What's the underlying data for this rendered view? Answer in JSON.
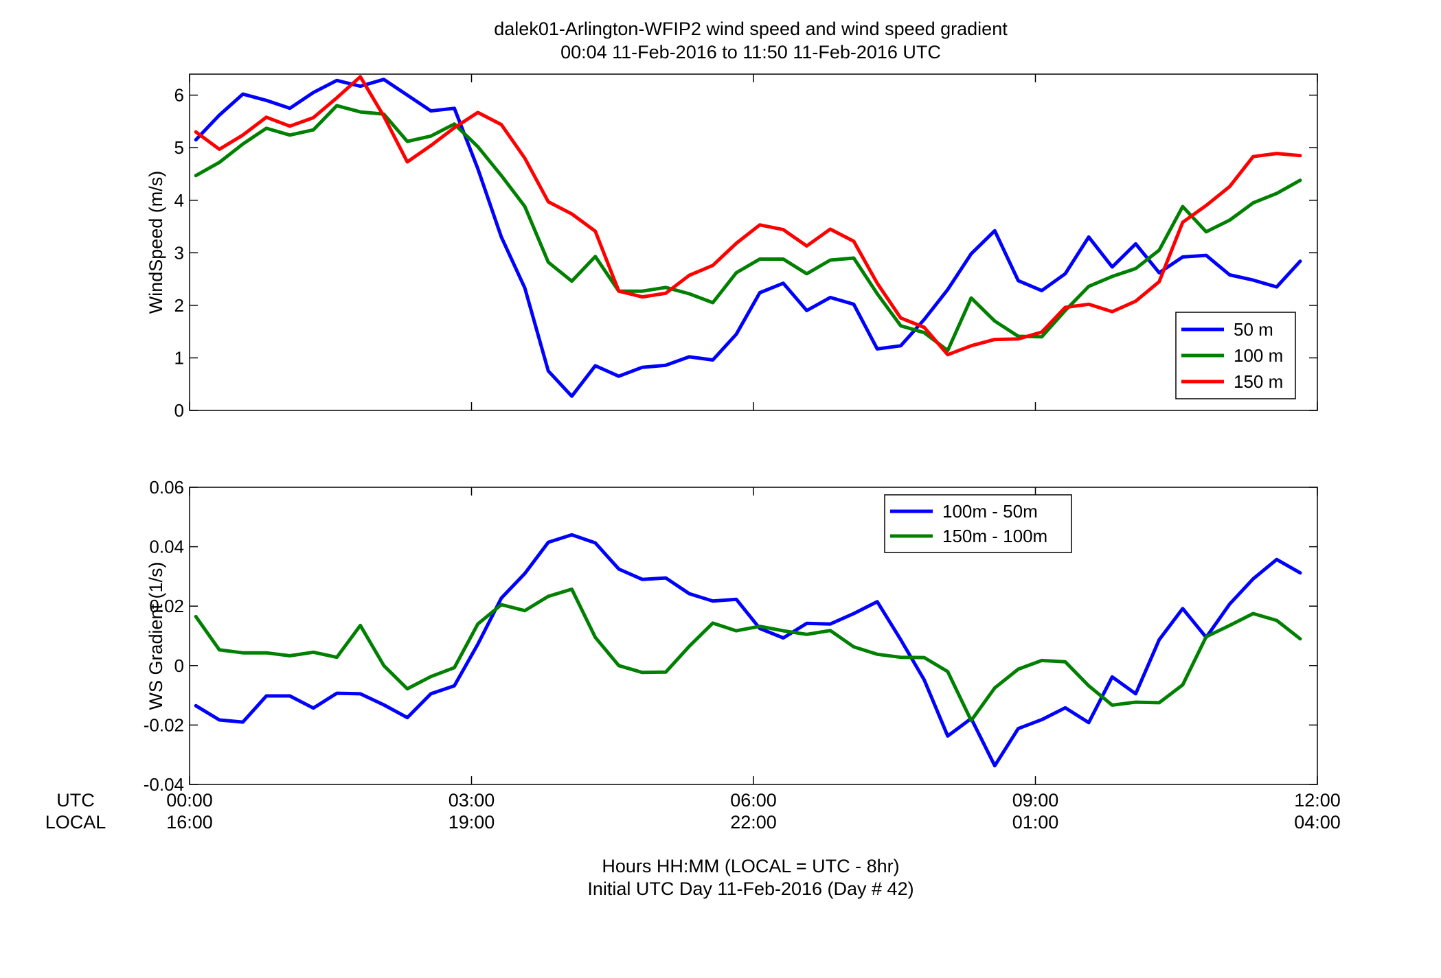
{
  "figure": {
    "title_line1": "dalek01-Arlington-WFIP2  wind speed and wind speed gradient",
    "title_line2": "00:04 11-Feb-2016 to 11:50 11-Feb-2016  UTC",
    "xlabel_line1": "Hours HH:MM  (LOCAL = UTC - 8hr)",
    "xlabel_line2": "Initial UTC Day 11-Feb-2016 (Day # 42)",
    "utc_row_label": "UTC",
    "local_row_label": "LOCAL"
  },
  "chart_data": [
    {
      "type": "line",
      "ylabel": "WindSpeed (m/s)",
      "xlim": [
        0,
        12
      ],
      "ylim": [
        0,
        6.4
      ],
      "yticks": [
        0,
        1,
        2,
        3,
        4,
        5,
        6
      ],
      "ytick_labels": [
        "0",
        "1",
        "2",
        "3",
        "4",
        "5",
        "6"
      ],
      "xticks": [
        0,
        3,
        6,
        9,
        12
      ],
      "xtick_labels_utc": [
        "00:00",
        "03:00",
        "06:00",
        "09:00",
        "12:00"
      ],
      "xtick_labels_local": [
        "16:00",
        "19:00",
        "22:00",
        "01:00",
        "04:00"
      ],
      "legend_position": "bottom-right",
      "x": [
        0.067,
        0.317,
        0.567,
        0.817,
        1.067,
        1.317,
        1.567,
        1.817,
        2.067,
        2.317,
        2.567,
        2.817,
        3.067,
        3.317,
        3.567,
        3.817,
        4.067,
        4.317,
        4.567,
        4.817,
        5.067,
        5.317,
        5.567,
        5.817,
        6.067,
        6.317,
        6.567,
        6.817,
        7.067,
        7.317,
        7.567,
        7.817,
        8.067,
        8.317,
        8.567,
        8.817,
        9.067,
        9.317,
        9.567,
        9.817,
        10.067,
        10.317,
        10.567,
        10.817,
        11.067,
        11.317,
        11.567,
        11.817
      ],
      "series": [
        {
          "name": "50 m",
          "color": "#0000ff",
          "values": [
            5.15,
            5.62,
            6.02,
            5.9,
            5.75,
            6.05,
            6.28,
            6.17,
            6.3,
            6.0,
            5.7,
            5.75,
            4.6,
            3.3,
            2.33,
            0.75,
            0.27,
            0.85,
            0.65,
            0.82,
            0.86,
            1.02,
            0.96,
            1.45,
            2.24,
            2.42,
            1.9,
            2.15,
            2.02,
            1.17,
            1.23,
            1.73,
            2.3,
            2.98,
            3.42,
            2.47,
            2.28,
            2.6,
            3.3,
            2.73,
            3.17,
            2.62,
            2.92,
            2.95,
            2.58,
            2.48,
            2.35,
            2.84
          ]
        },
        {
          "name": "100 m",
          "color": "#008000",
          "values": [
            4.47,
            4.72,
            5.07,
            5.37,
            5.24,
            5.34,
            5.8,
            5.68,
            5.64,
            5.12,
            5.22,
            5.45,
            5.02,
            4.47,
            3.88,
            2.82,
            2.46,
            2.93,
            2.27,
            2.27,
            2.34,
            2.22,
            2.05,
            2.62,
            2.88,
            2.88,
            2.6,
            2.86,
            2.9,
            2.22,
            1.61,
            1.48,
            1.14,
            2.14,
            1.7,
            1.41,
            1.4,
            1.9,
            2.36,
            2.55,
            2.7,
            3.05,
            3.88,
            3.4,
            3.62,
            3.95,
            4.13,
            4.38
          ]
        },
        {
          "name": "150 m",
          "color": "#ff0000",
          "values": [
            5.3,
            4.97,
            5.24,
            5.58,
            5.41,
            5.57,
            5.95,
            6.35,
            5.6,
            4.73,
            5.04,
            5.38,
            5.67,
            5.44,
            4.8,
            3.97,
            3.74,
            3.41,
            2.27,
            2.16,
            2.23,
            2.57,
            2.76,
            3.18,
            3.53,
            3.44,
            3.13,
            3.45,
            3.22,
            2.42,
            1.76,
            1.58,
            1.06,
            1.23,
            1.35,
            1.36,
            1.49,
            1.96,
            2.02,
            1.88,
            2.08,
            2.45,
            3.58,
            3.9,
            4.26,
            4.83,
            4.89,
            4.85
          ]
        }
      ]
    },
    {
      "type": "line",
      "ylabel": "WS Gradient (1/s)",
      "xlim": [
        0,
        12
      ],
      "ylim": [
        -0.04,
        0.06
      ],
      "yticks": [
        -0.04,
        -0.02,
        0,
        0.02,
        0.04,
        0.06
      ],
      "ytick_labels": [
        "-0.04",
        "-0.02",
        "0",
        "0.02",
        "0.04",
        "0.06"
      ],
      "xticks": [
        0,
        3,
        6,
        9,
        12
      ],
      "legend_position": "top-center",
      "x": [
        0.067,
        0.317,
        0.567,
        0.817,
        1.067,
        1.317,
        1.567,
        1.817,
        2.067,
        2.317,
        2.567,
        2.817,
        3.067,
        3.317,
        3.567,
        3.817,
        4.067,
        4.317,
        4.567,
        4.817,
        5.067,
        5.317,
        5.567,
        5.817,
        6.067,
        6.317,
        6.567,
        6.817,
        7.067,
        7.317,
        7.567,
        7.817,
        8.067,
        8.317,
        8.567,
        8.817,
        9.067,
        9.317,
        9.567,
        9.817,
        10.067,
        10.317,
        10.567,
        10.817,
        11.067,
        11.317,
        11.567,
        11.817
      ],
      "series": [
        {
          "name": "100m - 50m",
          "color": "#0000ff",
          "values": [
            -0.0135,
            -0.0183,
            -0.019,
            -0.0102,
            -0.0102,
            -0.0143,
            -0.0093,
            -0.0095,
            -0.0132,
            -0.0175,
            -0.0095,
            -0.0068,
            0.0072,
            0.0227,
            0.031,
            0.0415,
            0.044,
            0.0413,
            0.0325,
            0.029,
            0.0295,
            0.0242,
            0.0217,
            0.0223,
            0.0125,
            0.0093,
            0.0142,
            0.014,
            0.0175,
            0.0215,
            0.0087,
            -0.0048,
            -0.0237,
            -0.0178,
            -0.0337,
            -0.0212,
            -0.0182,
            -0.0142,
            -0.0192,
            -0.0038,
            -0.0095,
            0.0087,
            0.0192,
            0.0095,
            0.0207,
            0.0292,
            0.0357,
            0.0312
          ]
        },
        {
          "name": "150m - 100m",
          "color": "#008000",
          "values": [
            0.0165,
            0.0053,
            0.0043,
            0.0043,
            0.0033,
            0.0045,
            0.0028,
            0.0135,
            0.0,
            -0.0078,
            -0.0037,
            -0.0007,
            0.014,
            0.0205,
            0.0185,
            0.0233,
            0.0257,
            0.0095,
            0.0,
            -0.0023,
            -0.0022,
            0.0065,
            0.0143,
            0.0117,
            0.0132,
            0.0117,
            0.0105,
            0.0118,
            0.0063,
            0.0038,
            0.0028,
            0.0027,
            -0.002,
            -0.0185,
            -0.0075,
            -0.0012,
            0.0017,
            0.0013,
            -0.0068,
            -0.0133,
            -0.0123,
            -0.0125,
            -0.0065,
            0.0097,
            0.0135,
            0.0175,
            0.0152,
            0.009
          ]
        }
      ]
    }
  ]
}
